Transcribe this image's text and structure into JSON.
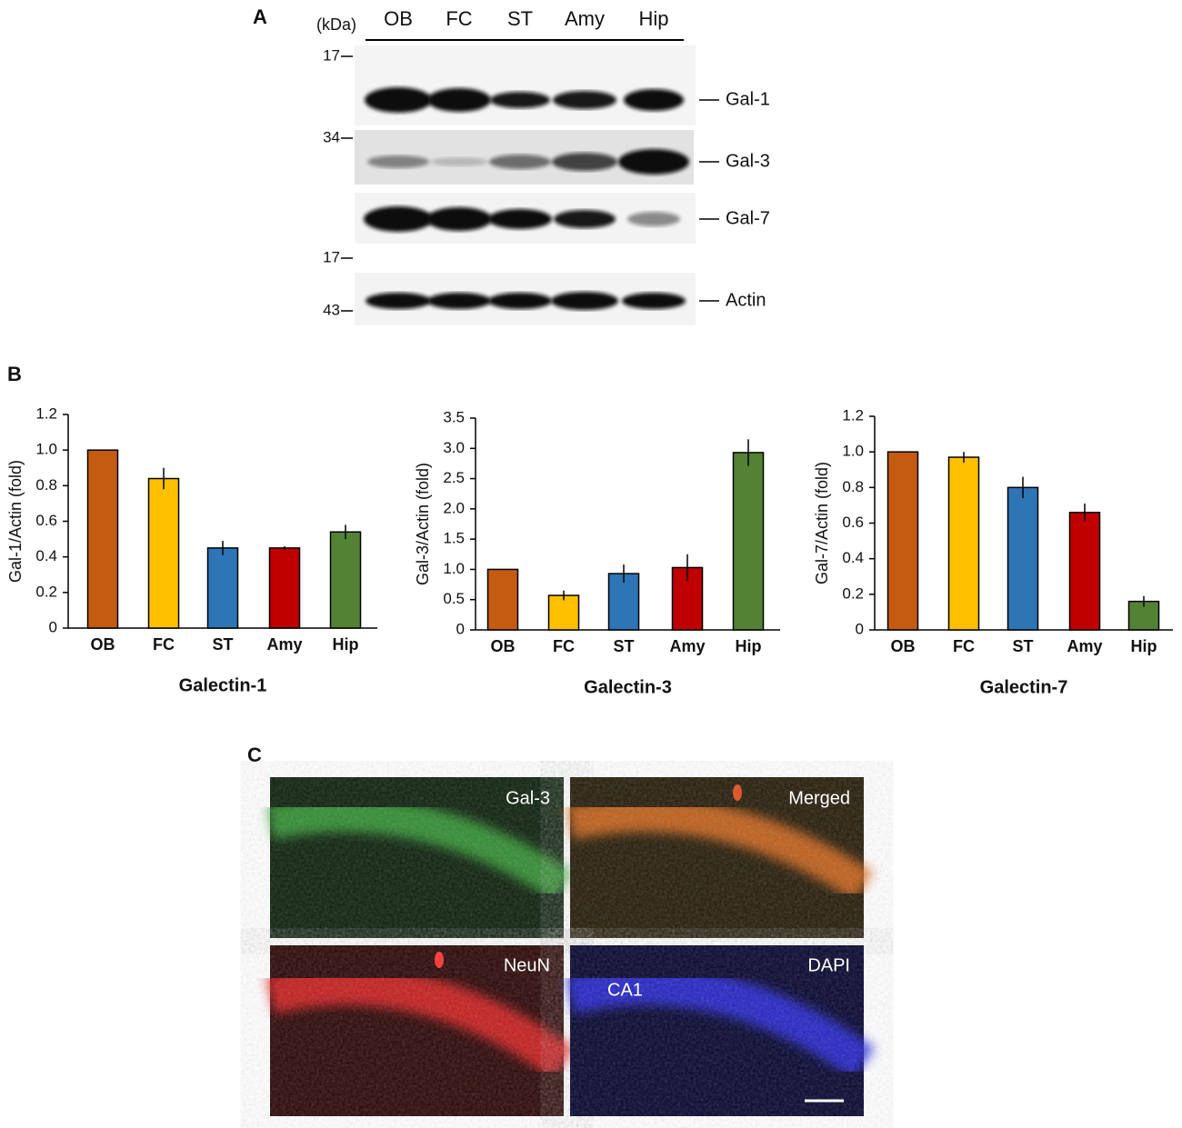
{
  "panel_letters": {
    "a": "A",
    "b": "B",
    "c": "C"
  },
  "blot": {
    "unit": "(kDa)",
    "lanes": [
      "OB",
      "FC",
      "ST",
      "Amy",
      "Hip"
    ],
    "markers": [
      "17",
      "34",
      "17",
      "43"
    ],
    "bands": [
      "Gal-1",
      "Gal-3",
      "Gal-7",
      "Actin"
    ]
  },
  "chart_data": [
    {
      "type": "bar",
      "title": "Galectin-1",
      "ylabel": "Gal-1/Actin (fold)",
      "categories": [
        "OB",
        "FC",
        "ST",
        "Amy",
        "Hip"
      ],
      "values": [
        1.0,
        0.84,
        0.45,
        0.45,
        0.54
      ],
      "errors": [
        0,
        0.06,
        0.04,
        0.01,
        0.04
      ],
      "colors": [
        "#c55a11",
        "#ffc000",
        "#2e75b6",
        "#c00000",
        "#548235"
      ],
      "ylim": [
        0,
        1.2
      ],
      "yticks": [
        0,
        0.2,
        0.4,
        0.6,
        0.8,
        {
          "value": 1,
          "label": "1.0"
        },
        1.2
      ]
    },
    {
      "type": "bar",
      "title": "Galectin-3",
      "ylabel": "Gal-3/Actin (fold)",
      "categories": [
        "OB",
        "FC",
        "ST",
        "Amy",
        "Hip"
      ],
      "values": [
        1.0,
        0.57,
        0.93,
        1.03,
        2.93
      ],
      "errors": [
        0,
        0.08,
        0.15,
        0.22,
        0.22
      ],
      "colors": [
        "#c55a11",
        "#ffc000",
        "#2e75b6",
        "#c00000",
        "#548235"
      ],
      "ylim": [
        0,
        3.5
      ],
      "yticks": [
        0,
        0.5,
        {
          "value": 1,
          "label": "1.0"
        },
        1.5,
        {
          "value": 2,
          "label": "2.0"
        },
        2.5,
        {
          "value": 3,
          "label": "3.0"
        },
        3.5
      ]
    },
    {
      "type": "bar",
      "title": "Galectin-7",
      "ylabel": "Gal-7/Actin (fold)",
      "categories": [
        "OB",
        "FC",
        "ST",
        "Amy",
        "Hip"
      ],
      "values": [
        1.0,
        0.97,
        0.8,
        0.66,
        0.16
      ],
      "errors": [
        0,
        0.03,
        0.06,
        0.05,
        0.03
      ],
      "colors": [
        "#c55a11",
        "#ffc000",
        "#2e75b6",
        "#c00000",
        "#548235"
      ],
      "ylim": [
        0,
        1.2
      ],
      "yticks": [
        0,
        0.2,
        0.4,
        0.6,
        0.8,
        {
          "value": 1,
          "label": "1.0"
        },
        1.2
      ]
    }
  ],
  "micrographs": {
    "labels": [
      "Gal-3",
      "Merged",
      "NeuN",
      "DAPI"
    ],
    "region": "CA1"
  }
}
